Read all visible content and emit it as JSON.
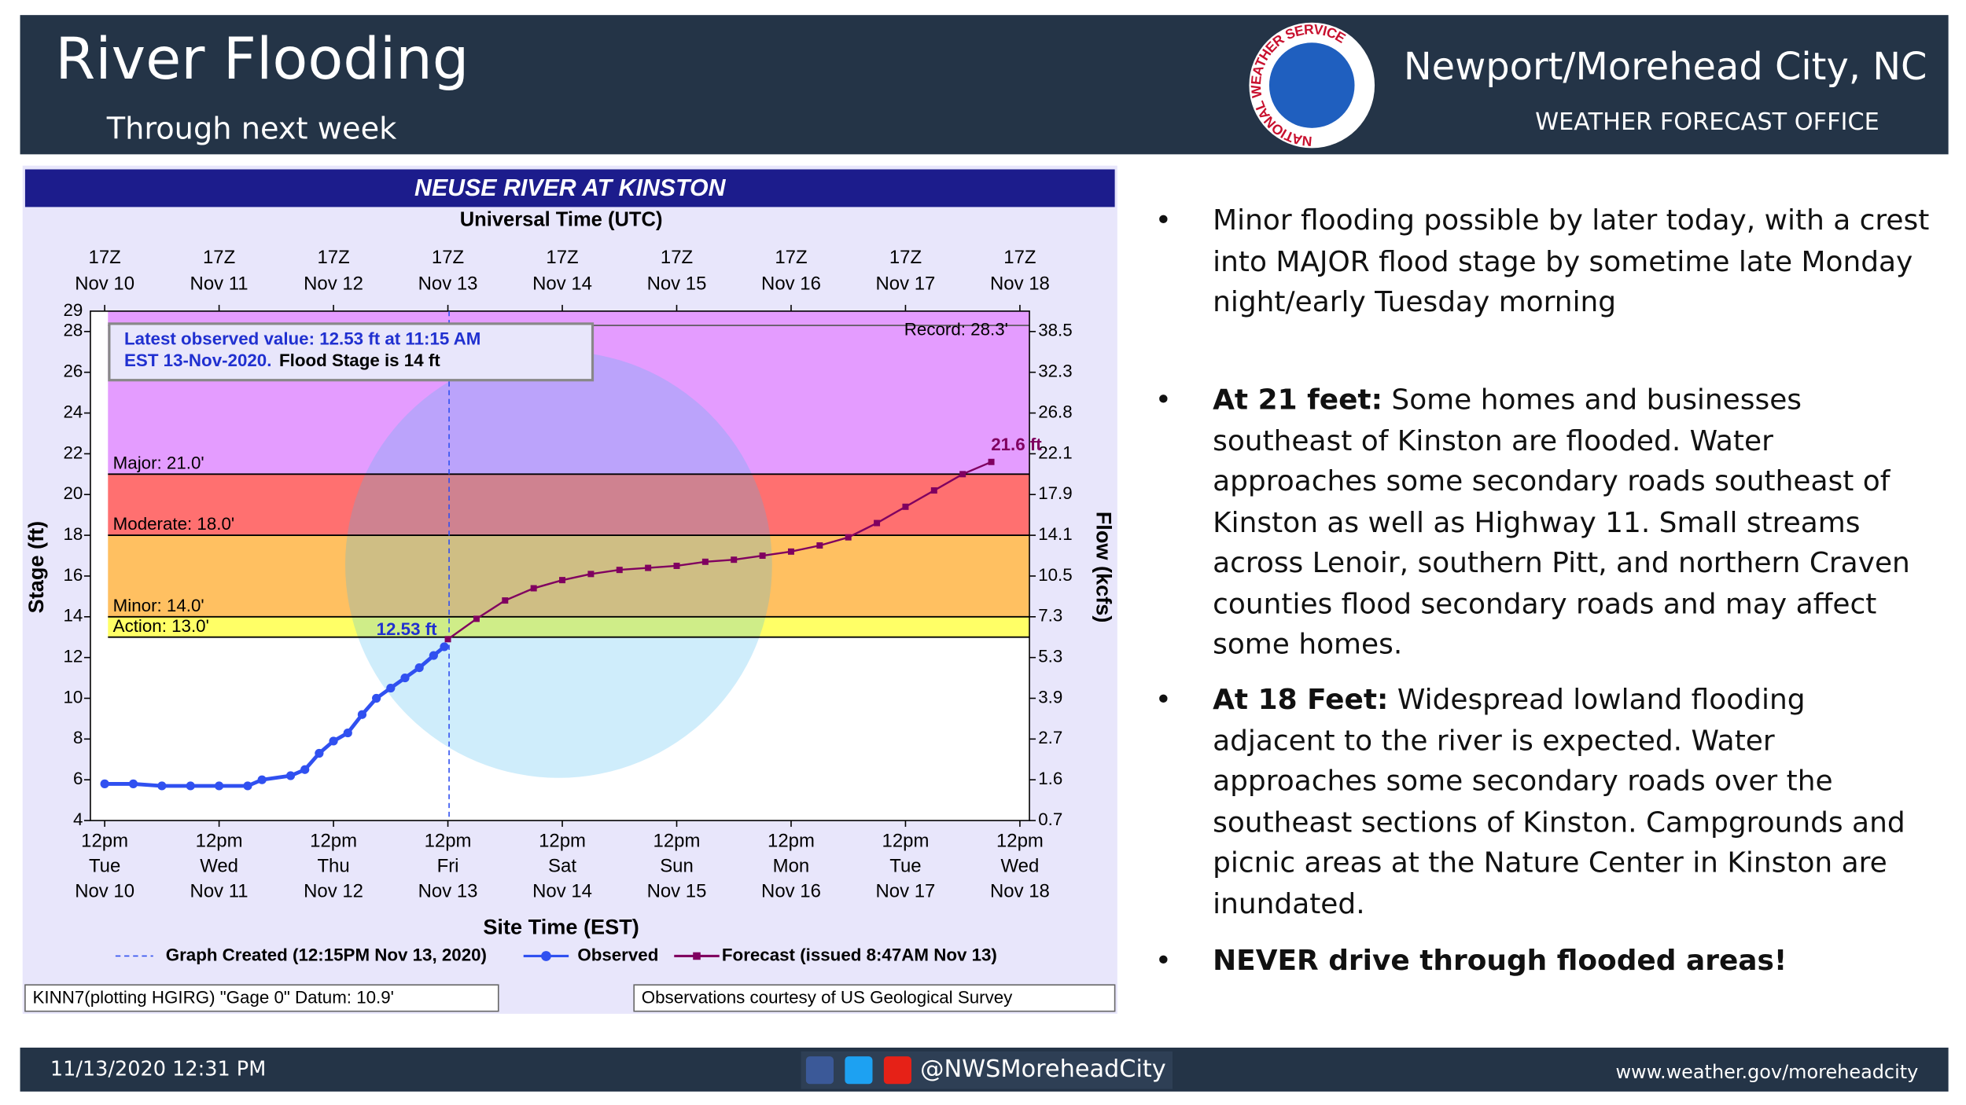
{
  "header": {
    "title": "River Flooding",
    "subtitle": "Through next week",
    "office": "Newport/Morehead City, NC",
    "office_sub": "WEATHER FORECAST OFFICE",
    "logo_text": "NATIONAL WEATHER SERVICE"
  },
  "chart_data": {
    "type": "line",
    "title": "NEUSE RIVER AT KINSTON",
    "x2label": "Universal Time (UTC)",
    "xlabel": "Site Time (EST)",
    "ylabel": "Stage (ft)",
    "y2label": "Flow (kcfs)",
    "xlim": [
      "Nov 10 09:00",
      "Nov 18 14:00"
    ],
    "xticks": [
      {
        "value": "Nov 10 12:00",
        "label": [
          "12pm",
          "Tue",
          "Nov 10"
        ]
      },
      {
        "value": "Nov 11 12:00",
        "label": [
          "12pm",
          "Wed",
          "Nov 11"
        ]
      },
      {
        "value": "Nov 12 12:00",
        "label": [
          "12pm",
          "Thu",
          "Nov 12"
        ]
      },
      {
        "value": "Nov 13 12:00",
        "label": [
          "12pm",
          "Fri",
          "Nov 13"
        ]
      },
      {
        "value": "Nov 14 12:00",
        "label": [
          "12pm",
          "Sat",
          "Nov 14"
        ]
      },
      {
        "value": "Nov 15 12:00",
        "label": [
          "12pm",
          "Sun",
          "Nov 15"
        ]
      },
      {
        "value": "Nov 16 12:00",
        "label": [
          "12pm",
          "Mon",
          "Nov 16"
        ]
      },
      {
        "value": "Nov 17 12:00",
        "label": [
          "12pm",
          "Tue",
          "Nov 17"
        ]
      },
      {
        "value": "Nov 18 12:00",
        "label": [
          "12pm",
          "Wed",
          "Nov 18"
        ]
      }
    ],
    "x2ticks": [
      {
        "value": "Nov 10 12:00",
        "label": [
          "17Z",
          "Nov 10"
        ]
      },
      {
        "value": "Nov 11 12:00",
        "label": [
          "17Z",
          "Nov 11"
        ]
      },
      {
        "value": "Nov 12 12:00",
        "label": [
          "17Z",
          "Nov 12"
        ]
      },
      {
        "value": "Nov 13 12:00",
        "label": [
          "17Z",
          "Nov 13"
        ]
      },
      {
        "value": "Nov 14 12:00",
        "label": [
          "17Z",
          "Nov 14"
        ]
      },
      {
        "value": "Nov 15 12:00",
        "label": [
          "17Z",
          "Nov 15"
        ]
      },
      {
        "value": "Nov 16 12:00",
        "label": [
          "17Z",
          "Nov 16"
        ]
      },
      {
        "value": "Nov 17 12:00",
        "label": [
          "17Z",
          "Nov 17"
        ]
      },
      {
        "value": "Nov 18 12:00",
        "label": [
          "17Z",
          "Nov 18"
        ]
      }
    ],
    "ylim": [
      4,
      29
    ],
    "yticks": [
      4,
      6,
      8,
      10,
      12,
      14,
      16,
      18,
      20,
      22,
      24,
      26,
      28
    ],
    "y2ticks": [
      0.7,
      1.6,
      2.7,
      3.9,
      5.3,
      7.3,
      10.5,
      14.1,
      17.9,
      22.1,
      26.8,
      32.3,
      38.5
    ],
    "flood_stages": [
      {
        "label": "Action: 13.0'",
        "value": 13,
        "color": "#ffff66"
      },
      {
        "label": "Minor: 14.0'",
        "value": 14,
        "color": "#ffc061"
      },
      {
        "label": "Moderate: 18.0'",
        "value": 18,
        "color": "#ff7070"
      },
      {
        "label": "Major: 21.0'",
        "value": 21,
        "color": "#e49cff"
      }
    ],
    "record": {
      "label": "Record: 28.3'",
      "value": 28.3
    },
    "created": "Nov 13 12:15",
    "created_label": "Graph Created (12:15PM Nov 13, 2020)",
    "annotation": [
      "Latest observed value: 12.53 ft at 11:15 AM",
      "EST 13-Nov-2020.",
      "Flood Stage is 14 ft"
    ],
    "series": [
      {
        "name": "Observed",
        "color": "#3050f0",
        "x": [
          "Nov 10 12:00",
          "Nov 10 18:00",
          "Nov 11 00:00",
          "Nov 11 06:00",
          "Nov 11 12:00",
          "Nov 11 18:00",
          "Nov 11 21:00",
          "Nov 12 03:00",
          "Nov 12 06:00",
          "Nov 12 09:00",
          "Nov 12 12:00",
          "Nov 12 15:00",
          "Nov 12 18:00",
          "Nov 12 21:00",
          "Nov 13 00:00",
          "Nov 13 03:00",
          "Nov 13 06:00",
          "Nov 13 09:00",
          "Nov 13 11:15"
        ],
        "values": [
          5.8,
          5.8,
          5.7,
          5.7,
          5.7,
          5.7,
          6.0,
          6.2,
          6.5,
          7.3,
          7.9,
          8.3,
          9.2,
          10.0,
          10.5,
          11.0,
          11.5,
          12.1,
          12.53
        ],
        "value_labels": [
          null,
          null,
          null,
          null,
          null,
          null,
          null,
          null,
          null,
          null,
          null,
          null,
          null,
          null,
          null,
          null,
          null,
          null,
          "12.53 ft"
        ]
      },
      {
        "name": "Forecast (issued 8:47AM Nov 13)",
        "color": "#800060",
        "x": [
          "Nov 13 12:00",
          "Nov 13 18:00",
          "Nov 14 00:00",
          "Nov 14 06:00",
          "Nov 14 12:00",
          "Nov 14 18:00",
          "Nov 15 00:00",
          "Nov 15 06:00",
          "Nov 15 12:00",
          "Nov 15 18:00",
          "Nov 16 00:00",
          "Nov 16 06:00",
          "Nov 16 12:00",
          "Nov 16 18:00",
          "Nov 17 00:00",
          "Nov 17 06:00",
          "Nov 17 12:00",
          "Nov 17 18:00",
          "Nov 18 00:00",
          "Nov 18 06:00"
        ],
        "values": [
          12.9,
          13.9,
          14.8,
          15.4,
          15.8,
          16.1,
          16.3,
          16.4,
          16.5,
          16.7,
          16.8,
          17.0,
          17.2,
          17.5,
          17.9,
          18.6,
          19.4,
          20.2,
          21.0,
          21.6
        ],
        "value_labels": [
          null,
          null,
          null,
          null,
          null,
          null,
          null,
          null,
          null,
          null,
          null,
          null,
          null,
          null,
          null,
          null,
          null,
          null,
          null,
          "21.6 ft"
        ]
      }
    ],
    "datum_note": "KINN7(plotting HGIRG) \"Gage 0\" Datum: 10.9'",
    "source_note": "Observations courtesy of US Geological Survey"
  },
  "bullets": [
    {
      "text": "Minor flooding possible by later today, with a crest into MAJOR flood stage by sometime late Monday night/early Tuesday morning"
    },
    {
      "bold": "At 21 feet:",
      "text": "Some homes and businesses southeast of Kinston are flooded. Water approaches some secondary roads southeast of Kinston as well as Highway 11.  Small streams across Lenoir, southern Pitt, and northern Craven counties flood secondary roads and may affect some homes."
    },
    {
      "bold": "At 18 Feet:",
      "text": "Widespread lowland flooding adjacent to the river is expected. Water approaches some secondary roads over the southeast sections of Kinston.  Campgrounds and picnic areas at the Nature Center in Kinston are inundated."
    },
    {
      "bold": "NEVER drive through flooded areas!"
    }
  ],
  "footer": {
    "date": "11/13/2020 12:31 PM",
    "social": "@NWSMoreheadCity",
    "url": "www.weather.gov/moreheadcity"
  }
}
